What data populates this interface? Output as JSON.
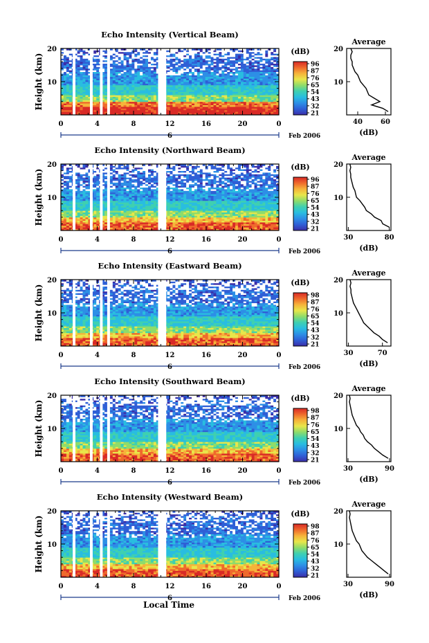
{
  "figure": {
    "xlabel": "Local Time",
    "date_label": "Feb 2006",
    "day_label": "6",
    "cbar_unit": "(dB)",
    "avg_title": "Average",
    "avg_xlabel": "(dB)",
    "ylabel": "Height (km)",
    "colors": {
      "scale": [
        "#3b2ea8",
        "#2f5fd6",
        "#2d8fe6",
        "#29bde0",
        "#3fd0b0",
        "#8fdc6a",
        "#e8e64a",
        "#f6b33a",
        "#ef6a2c",
        "#d92a26"
      ],
      "gap": "#ffffff",
      "background": "#ffffff"
    }
  },
  "chart_data": [
    {
      "type": "heatmap",
      "title": "Echo Intensity (Vertical Beam)",
      "x_ticks": [
        "0",
        "4",
        "8",
        "12",
        "16",
        "20",
        "0"
      ],
      "y_ticks": [
        "20",
        "10"
      ],
      "xlim": [
        0,
        24
      ],
      "ylim": [
        0,
        20
      ],
      "colorbar_ticks": [
        "96",
        "87",
        "76",
        "65",
        "54",
        "43",
        "32",
        "21"
      ],
      "data_gaps_hours": [
        [
          1.3,
          1.6
        ],
        [
          3.2,
          3.5
        ],
        [
          4.3,
          4.6
        ],
        [
          5.1,
          5.4
        ],
        [
          10.7,
          11.6
        ]
      ],
      "average_profile": {
        "x_ticks": [
          "40",
          "60"
        ],
        "xlim": [
          32,
          64
        ],
        "heights": [
          1,
          2,
          3,
          4,
          5,
          6,
          7,
          8,
          9,
          10,
          11,
          12,
          13,
          14,
          15,
          16,
          17,
          18,
          19,
          20
        ],
        "values": [
          62,
          58,
          50,
          56,
          52,
          48,
          47,
          46,
          44,
          42,
          41,
          40,
          38,
          37,
          36,
          36,
          35,
          35,
          36,
          35
        ]
      }
    },
    {
      "type": "heatmap",
      "title": "Echo Intensity (Northward Beam)",
      "x_ticks": [
        "0",
        "4",
        "8",
        "12",
        "16",
        "20",
        "0"
      ],
      "y_ticks": [
        "20",
        "10"
      ],
      "xlim": [
        0,
        24
      ],
      "ylim": [
        0,
        20
      ],
      "colorbar_ticks": [
        "96",
        "87",
        "76",
        "65",
        "54",
        "43",
        "32",
        "21"
      ],
      "data_gaps_hours": [
        [
          1.3,
          1.6
        ],
        [
          3.2,
          3.5
        ],
        [
          4.3,
          4.6
        ],
        [
          5.1,
          5.4
        ],
        [
          10.7,
          11.6
        ]
      ],
      "average_profile": {
        "x_ticks": [
          "30",
          "80"
        ],
        "xlim": [
          28,
          82
        ],
        "heights": [
          1,
          2,
          3,
          4,
          5,
          6,
          7,
          8,
          9,
          10,
          11,
          12,
          13,
          14,
          15,
          16,
          17,
          18,
          19,
          20
        ],
        "values": [
          80,
          72,
          70,
          62,
          58,
          52,
          50,
          47,
          44,
          40,
          39,
          38,
          36,
          35,
          34,
          33,
          33,
          32,
          33,
          32
        ]
      }
    },
    {
      "type": "heatmap",
      "title": "Echo Intensity (Eastward Beam)",
      "x_ticks": [
        "0",
        "4",
        "8",
        "12",
        "16",
        "20",
        "0"
      ],
      "y_ticks": [
        "20",
        "10"
      ],
      "xlim": [
        0,
        24
      ],
      "ylim": [
        0,
        20
      ],
      "colorbar_ticks": [
        "98",
        "87",
        "76",
        "65",
        "54",
        "43",
        "32",
        "21"
      ],
      "data_gaps_hours": [
        [
          1.3,
          1.6
        ],
        [
          3.2,
          3.5
        ],
        [
          4.3,
          4.6
        ],
        [
          5.1,
          5.4
        ],
        [
          10.7,
          11.6
        ]
      ],
      "average_profile": {
        "x_ticks": [
          "30",
          "70"
        ],
        "xlim": [
          28,
          80
        ],
        "heights": [
          1,
          2,
          3,
          4,
          5,
          6,
          7,
          8,
          9,
          10,
          11,
          12,
          13,
          14,
          15,
          16,
          17,
          18,
          19,
          20
        ],
        "values": [
          76,
          70,
          66,
          60,
          56,
          52,
          48,
          46,
          44,
          42,
          40,
          38,
          36,
          35,
          34,
          33,
          33,
          32,
          33,
          32
        ]
      }
    },
    {
      "type": "heatmap",
      "title": "Echo Intensity (Southward Beam)",
      "x_ticks": [
        "0",
        "4",
        "8",
        "12",
        "16",
        "20",
        "0"
      ],
      "y_ticks": [
        "20",
        "10"
      ],
      "xlim": [
        0,
        24
      ],
      "ylim": [
        0,
        20
      ],
      "colorbar_ticks": [
        "98",
        "87",
        "76",
        "65",
        "54",
        "43",
        "32",
        "21"
      ],
      "data_gaps_hours": [
        [
          1.3,
          1.6
        ],
        [
          3.2,
          3.5
        ],
        [
          4.3,
          4.6
        ],
        [
          5.1,
          5.4
        ],
        [
          10.7,
          11.6
        ]
      ],
      "average_profile": {
        "x_ticks": [
          "30",
          "90"
        ],
        "xlim": [
          28,
          92
        ],
        "heights": [
          1,
          2,
          3,
          4,
          5,
          6,
          7,
          8,
          9,
          10,
          11,
          12,
          13,
          14,
          15,
          16,
          17,
          18,
          19,
          20
        ],
        "values": [
          88,
          80,
          74,
          68,
          64,
          58,
          54,
          52,
          48,
          46,
          42,
          40,
          38,
          36,
          35,
          34,
          33,
          32,
          33,
          32
        ]
      }
    },
    {
      "type": "heatmap",
      "title": "Echo Intensity (Westward Beam)",
      "x_ticks": [
        "0",
        "4",
        "8",
        "12",
        "16",
        "20",
        "0"
      ],
      "y_ticks": [
        "20",
        "10"
      ],
      "xlim": [
        0,
        24
      ],
      "ylim": [
        0,
        20
      ],
      "colorbar_ticks": [
        "98",
        "87",
        "76",
        "65",
        "54",
        "43",
        "32",
        "21"
      ],
      "data_gaps_hours": [
        [
          1.3,
          1.6
        ],
        [
          3.2,
          3.5
        ],
        [
          4.3,
          4.6
        ],
        [
          5.1,
          5.4
        ],
        [
          10.7,
          11.6
        ]
      ],
      "average_profile": {
        "x_ticks": [
          "30",
          "90"
        ],
        "xlim": [
          28,
          92
        ],
        "heights": [
          1,
          2,
          3,
          4,
          5,
          6,
          7,
          8,
          9,
          10,
          11,
          12,
          13,
          14,
          15,
          16,
          17,
          18,
          19,
          20
        ],
        "values": [
          88,
          82,
          76,
          70,
          64,
          58,
          54,
          50,
          48,
          46,
          42,
          40,
          38,
          36,
          35,
          34,
          33,
          32,
          33,
          32
        ]
      }
    }
  ]
}
